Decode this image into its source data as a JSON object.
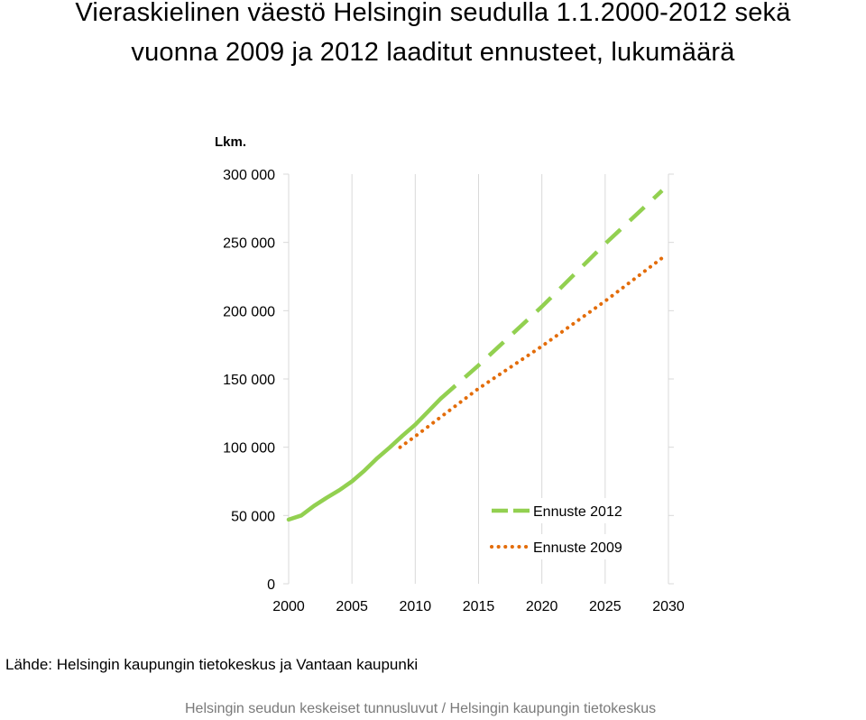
{
  "title_lines": [
    "Vieraskielinen väestö Helsingin seudulla 1.1.2000-2012 sekä",
    "vuonna 2009 ja 2012 laaditut ennusteet, lukumäärä"
  ],
  "source": "Lähde: Helsingin kaupungin tietokeskus ja Vantaan kaupunki",
  "footer": "Helsingin seudun keskeiset tunnusluvut / Helsingin kaupungin tietokeskus",
  "colors": {
    "actual": "#92d050",
    "forecast_2012": "#92d050",
    "forecast_2009": "#e36c09",
    "grid": "#d9d9d9",
    "axis_text": "#000000"
  },
  "chart_data": {
    "type": "line",
    "title": "Vieraskielinen väestö Helsingin seudulla 1.1.2000-2012 sekä vuonna 2009 ja 2012 laaditut ennusteet, lukumäärä",
    "ylabel": "Lkm.",
    "xlabel": "",
    "xlim": [
      2000,
      2030
    ],
    "ylim": [
      0,
      300000
    ],
    "xticks": [
      2000,
      2005,
      2010,
      2015,
      2020,
      2025,
      2030
    ],
    "yticks": [
      0,
      50000,
      100000,
      150000,
      200000,
      250000,
      300000
    ],
    "ytick_labels": [
      "0",
      "50 000",
      "100 000",
      "150 000",
      "200 000",
      "250 000",
      "300 000"
    ],
    "grid": "vertical",
    "legend_position": "bottom-right",
    "series": [
      {
        "name": "",
        "style": "solid",
        "x": [
          2000,
          2001,
          2002,
          2003,
          2004,
          2005,
          2006,
          2007,
          2008,
          2009,
          2010,
          2011,
          2012
        ],
        "y": [
          47000,
          50000,
          57000,
          63000,
          68500,
          75000,
          83000,
          92000,
          100000,
          108500,
          116500,
          126000,
          135500
        ]
      },
      {
        "name": "Ennuste 2012",
        "style": "dashed",
        "x": [
          2012,
          2015,
          2020,
          2025,
          2029.5
        ],
        "y": [
          135500,
          160000,
          203000,
          249000,
          288000
        ]
      },
      {
        "name": "Ennuste 2009",
        "style": "dotted",
        "x": [
          2008.8,
          2010,
          2015,
          2020,
          2025,
          2029.7
        ],
        "y": [
          100000,
          108000,
          143000,
          174000,
          207000,
          240000
        ]
      }
    ]
  }
}
